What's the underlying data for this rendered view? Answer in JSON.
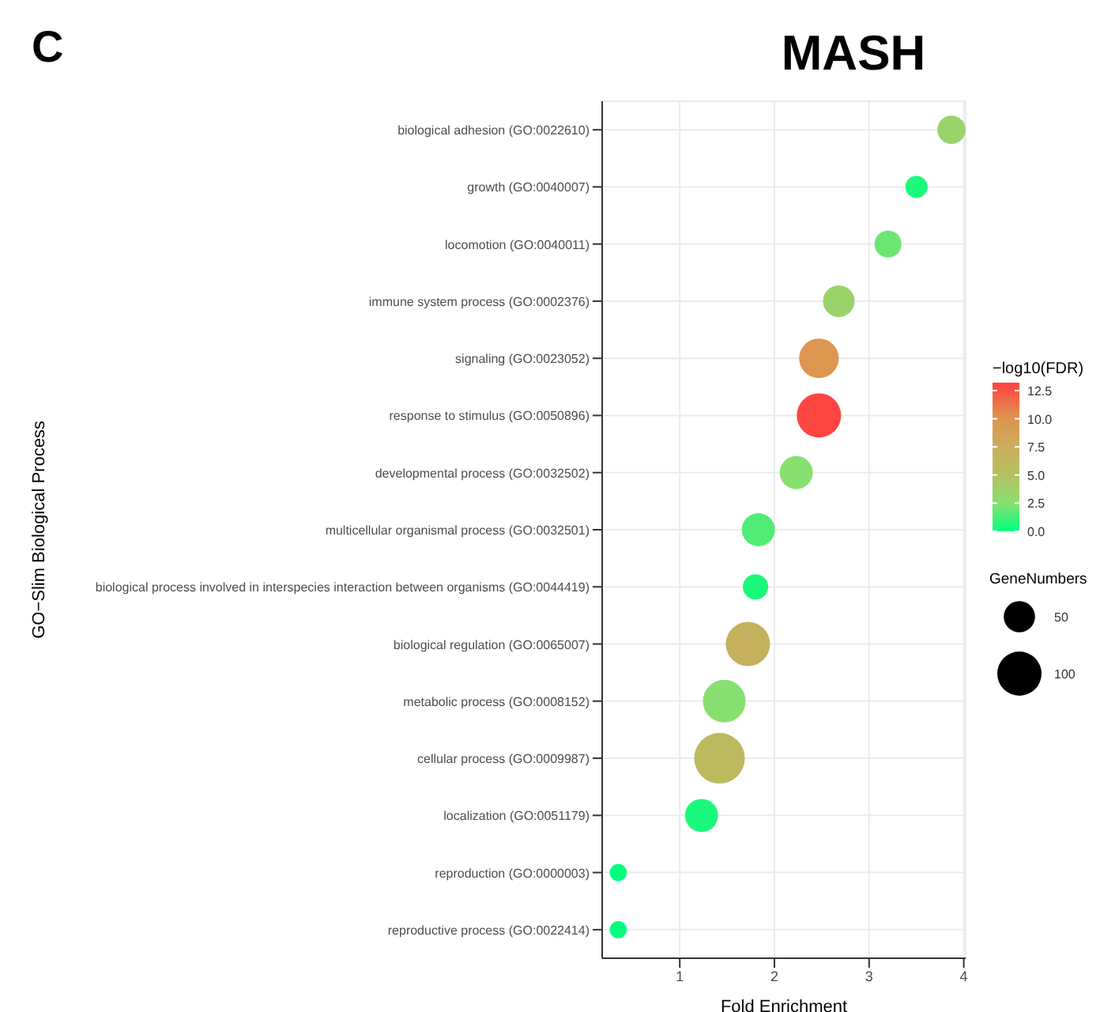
{
  "chart_data": {
    "type": "bubble",
    "title": "MASH",
    "xlabel": "Fold Enrichment",
    "ylabel": "GO−Slim Biological Process",
    "clabel": "−log10(FDR)",
    "legend_title": "GeneNumbers",
    "annotations": [
      "C"
    ],
    "categories": [
      "biological adhesion (GO:0022610)",
      "growth (GO:0040007)",
      "locomotion (GO:0040011)",
      "immune system process (GO:0002376)",
      "signaling (GO:0023052)",
      "response to stimulus (GO:0050896)",
      "developmental process (GO:0032502)",
      "multicellular organismal process (GO:0032501)",
      "biological process involved in interspecies interaction between organisms (GO:0044419)",
      "biological regulation (GO:0065007)",
      "metabolic process (GO:0008152)",
      "cellular process (GO:0009987)",
      "localization (GO:0051179)",
      "reproduction (GO:0000003)",
      "reproductive process (GO:0022414)"
    ],
    "values": [
      3.87,
      3.5,
      3.2,
      2.68,
      2.47,
      2.47,
      2.23,
      1.83,
      1.8,
      1.72,
      1.47,
      1.42,
      1.23,
      0.35,
      0.35
    ],
    "sizes": [
      41,
      25,
      37,
      51,
      80,
      100,
      56,
      56,
      33,
      100,
      93,
      131,
      56,
      15,
      15
    ],
    "cvalues": [
      3.5,
      0.5,
      2,
      3.5,
      10,
      13,
      2.5,
      1.5,
      0.5,
      7,
      2.5,
      6,
      0.5,
      0,
      0
    ],
    "size_legend": [
      50,
      100
    ],
    "xlim": [
      0.18,
      4.02
    ],
    "xticks": [
      1,
      2,
      3,
      4
    ],
    "clim": [
      0,
      13.2
    ],
    "cticks": [
      {
        "value": 0,
        "label": "0.0"
      },
      {
        "value": 2.5,
        "label": "2.5"
      },
      {
        "value": 5,
        "label": "5.0"
      },
      {
        "value": 7.5,
        "label": "7.5"
      },
      {
        "value": 10,
        "label": "10.0"
      },
      {
        "value": 12.5,
        "label": "12.5"
      }
    ],
    "orientation": "horizontal",
    "grid": true
  }
}
